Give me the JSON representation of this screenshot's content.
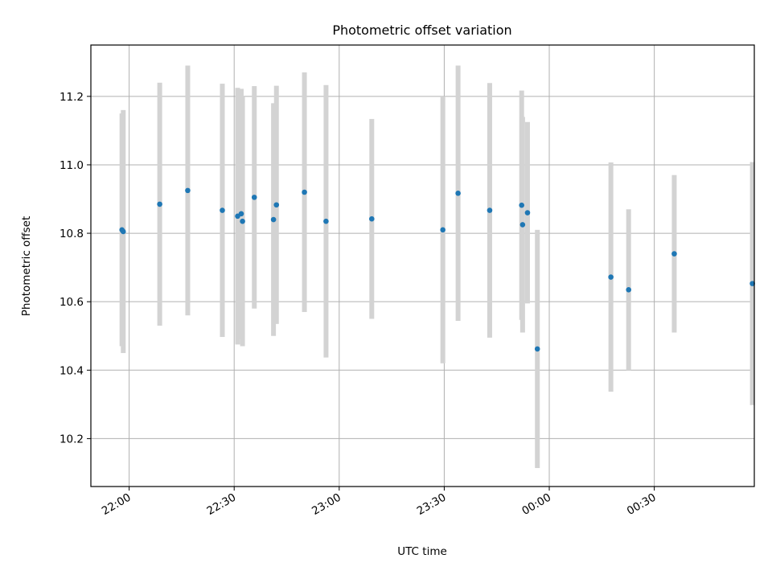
{
  "chart_data": {
    "type": "scatter",
    "title": "Photometric offset variation",
    "xlabel": "UTC time",
    "ylabel": "Photometric offset",
    "x_ticks": [
      "22:00",
      "22:30",
      "23:00",
      "23:30",
      "00:00",
      "00:30"
    ],
    "x_tick_values": [
      "21:59:56",
      "22:29:56",
      "22:59:56",
      "23:29:56",
      "23:59:56",
      "00:29:56"
    ],
    "x_range": [
      "21:49:00",
      "00:58:30"
    ],
    "y_ticks": [
      "10.2",
      "10.4",
      "10.6",
      "10.8",
      "11.0",
      "11.2"
    ],
    "ylim": [
      10.06,
      11.35
    ],
    "grid": true,
    "point_color": "#1f77b4",
    "errorbar_color": "#d3d3d3",
    "points": [
      {
        "time": "21:57:53",
        "y": 10.81,
        "err": 0.34
      },
      {
        "time": "21:58:15",
        "y": 10.805,
        "err": 0.355
      },
      {
        "time": "22:08:40",
        "y": 10.885,
        "err": 0.355
      },
      {
        "time": "22:16:40",
        "y": 10.925,
        "err": 0.365
      },
      {
        "time": "22:26:33",
        "y": 10.867,
        "err": 0.37
      },
      {
        "time": "22:30:55",
        "y": 10.85,
        "err": 0.375
      },
      {
        "time": "22:31:57",
        "y": 10.857,
        "err": 0.365
      },
      {
        "time": "22:32:19",
        "y": 10.835,
        "err": 0.365
      },
      {
        "time": "22:35:41",
        "y": 10.905,
        "err": 0.325
      },
      {
        "time": "22:41:10",
        "y": 10.84,
        "err": 0.34
      },
      {
        "time": "22:42:00",
        "y": 10.883,
        "err": 0.348
      },
      {
        "time": "22:50:00",
        "y": 10.92,
        "err": 0.35
      },
      {
        "time": "22:56:10",
        "y": 10.835,
        "err": 0.398
      },
      {
        "time": "23:09:14",
        "y": 10.842,
        "err": 0.292
      },
      {
        "time": "23:29:32",
        "y": 10.81,
        "err": 0.39
      },
      {
        "time": "23:33:53",
        "y": 10.917,
        "err": 0.373
      },
      {
        "time": "23:42:55",
        "y": 10.867,
        "err": 0.372
      },
      {
        "time": "23:52:03",
        "y": 10.882,
        "err": 0.335
      },
      {
        "time": "23:52:19",
        "y": 10.825,
        "err": 0.315
      },
      {
        "time": "23:53:43",
        "y": 10.86,
        "err": 0.265
      },
      {
        "time": "23:56:32",
        "y": 10.462,
        "err": 0.348
      },
      {
        "time": "00:17:32",
        "y": 10.672,
        "err": 0.335
      },
      {
        "time": "00:22:36",
        "y": 10.635,
        "err": 0.235
      },
      {
        "time": "00:35:38",
        "y": 10.74,
        "err": 0.23
      },
      {
        "time": "00:57:57",
        "y": 10.653,
        "err": 0.355
      }
    ]
  }
}
